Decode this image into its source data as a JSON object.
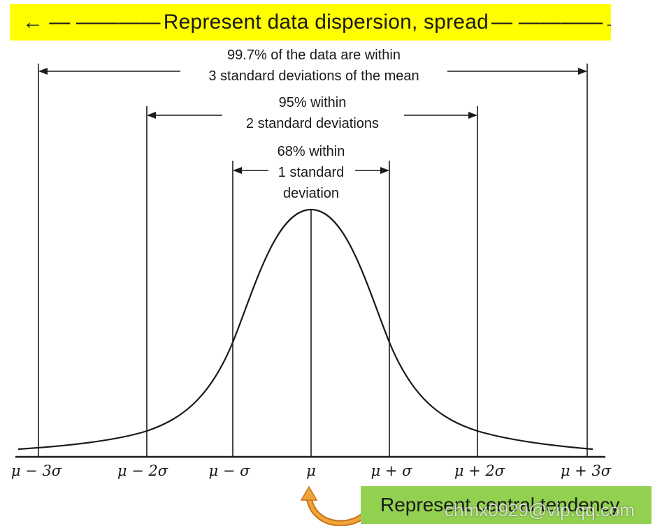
{
  "top_banner": {
    "arrow_left": "←",
    "dashes_left": "— ————",
    "text": "Represent data dispersion, spread",
    "dashes_right": "— ————",
    "arrow_right": "→",
    "color": "#ffff00"
  },
  "ranges": {
    "three_sd": {
      "line1": "99.7% of the data are within",
      "line2": "3 standard deviations of the mean"
    },
    "two_sd": {
      "line1": "95% within",
      "line2": "2 standard deviations"
    },
    "one_sd": {
      "line1": "68% within",
      "line2": "1 standard",
      "line3": "deviation"
    }
  },
  "axis_labels": [
    "μ − 3σ",
    "μ − 2σ",
    "μ − σ",
    "μ",
    "μ + σ",
    "μ + 2σ",
    "μ + 3σ"
  ],
  "bottom_banner": {
    "text": "Represent central tendency",
    "color": "#92d050",
    "arrow_color": "#e8961e"
  },
  "watermark": "chmx0929@vip.qq.com"
}
